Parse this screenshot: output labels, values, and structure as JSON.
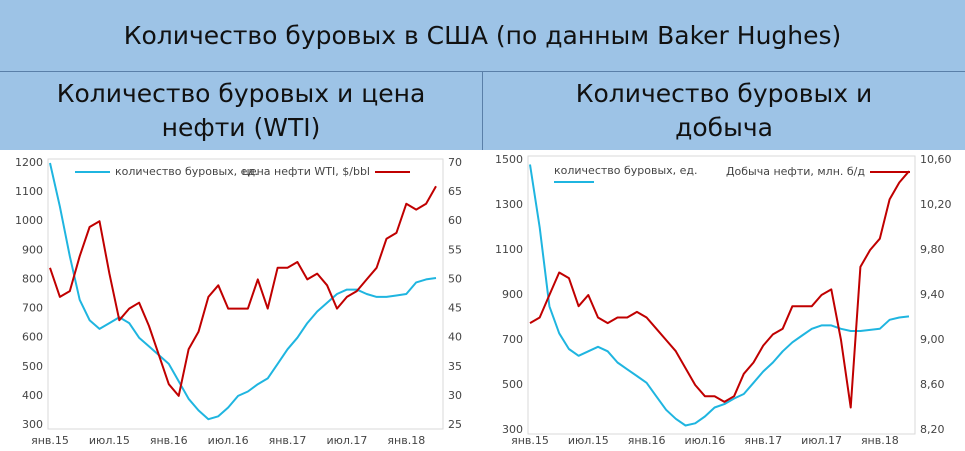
{
  "header": {
    "title": "Количество буровых в США (по данным Baker Hughes)"
  },
  "chart_data": [
    {
      "type": "line",
      "title": "Количество буровых и цена нефти (WTI)",
      "categories": [
        "янв.15",
        null,
        null,
        null,
        null,
        null,
        "июл.15",
        null,
        null,
        null,
        null,
        null,
        "янв.16",
        null,
        null,
        null,
        null,
        null,
        "июл.16",
        null,
        null,
        null,
        null,
        null,
        "янв.17",
        null,
        null,
        null,
        null,
        null,
        "июл.17",
        null,
        null,
        null,
        null,
        null,
        "янв.18",
        null,
        null,
        null
      ],
      "series": [
        {
          "name": "количество буровых, ед.",
          "color": "#1fb5e0",
          "axis": "y",
          "values": [
            1200,
            1050,
            880,
            730,
            660,
            630,
            650,
            670,
            650,
            600,
            570,
            540,
            510,
            450,
            390,
            350,
            320,
            330,
            360,
            400,
            415,
            440,
            460,
            510,
            560,
            600,
            650,
            690,
            720,
            750,
            765,
            765,
            750,
            740,
            740,
            745,
            750,
            790,
            800,
            805
          ]
        },
        {
          "name": "цена нефти WTI, $/bbl",
          "color": "#c00000",
          "axis": "y2",
          "values": [
            52,
            47,
            48,
            54,
            59,
            60,
            51,
            43,
            45,
            46,
            42,
            37,
            32,
            30,
            38,
            41,
            47,
            49,
            45,
            45,
            45,
            50,
            45,
            52,
            52,
            53,
            50,
            51,
            49,
            45,
            47,
            48,
            50,
            52,
            57,
            58,
            63,
            62,
            63,
            66
          ]
        }
      ],
      "ylim": [
        300,
        1200
      ],
      "yticks": [
        300,
        400,
        500,
        600,
        700,
        800,
        900,
        1000,
        1100,
        1200
      ],
      "y2lim": [
        25,
        70
      ],
      "y2ticks": [
        25,
        30,
        35,
        40,
        45,
        50,
        55,
        60,
        65,
        70
      ],
      "grid": false
    },
    {
      "type": "line",
      "title": "Количество буровых и добыча",
      "categories": [
        "янв.15",
        null,
        null,
        null,
        null,
        null,
        "июл.15",
        null,
        null,
        null,
        null,
        null,
        "янв.16",
        null,
        null,
        null,
        null,
        null,
        "июл.16",
        null,
        null,
        null,
        null,
        null,
        "янв.17",
        null,
        null,
        null,
        null,
        null,
        "июл.17",
        null,
        null,
        null,
        null,
        null,
        "янв.18",
        null,
        null,
        null
      ],
      "series": [
        {
          "name": "количество буровых, ед.",
          "color": "#1fb5e0",
          "axis": "y",
          "values": [
            1480,
            1200,
            850,
            730,
            660,
            630,
            650,
            670,
            650,
            600,
            570,
            540,
            510,
            450,
            390,
            350,
            320,
            330,
            360,
            400,
            415,
            440,
            460,
            510,
            560,
            600,
            650,
            690,
            720,
            750,
            765,
            765,
            750,
            740,
            740,
            745,
            750,
            790,
            800,
            805
          ]
        },
        {
          "name": "Добыча нефти, млн. б/д",
          "color": "#c00000",
          "axis": "y2",
          "values": [
            9.15,
            9.2,
            9.4,
            9.6,
            9.55,
            9.3,
            9.4,
            9.2,
            9.15,
            9.2,
            9.2,
            9.25,
            9.2,
            9.1,
            9.0,
            8.9,
            8.75,
            8.6,
            8.5,
            8.5,
            8.45,
            8.5,
            8.7,
            8.8,
            8.95,
            9.05,
            9.1,
            9.3,
            9.3,
            9.3,
            9.4,
            9.45,
            9.0,
            8.4,
            9.65,
            9.8,
            9.9,
            10.25,
            10.4,
            10.5
          ]
        }
      ],
      "ylim": [
        300,
        1500
      ],
      "yticks": [
        300,
        500,
        700,
        900,
        1100,
        1300,
        1500
      ],
      "y2lim": [
        8.2,
        10.6
      ],
      "y2ticks": [
        {
          "value": 8.2,
          "label": "8,20"
        },
        {
          "value": 8.6,
          "label": "8,60"
        },
        {
          "value": 9.0,
          "label": "9,00"
        },
        {
          "value": 9.4,
          "label": "9,40"
        },
        {
          "value": 9.8,
          "label": "9,80"
        },
        {
          "value": 10.2,
          "label": "10,20"
        },
        {
          "value": 10.6,
          "label": "10,60"
        }
      ],
      "grid": false
    }
  ]
}
